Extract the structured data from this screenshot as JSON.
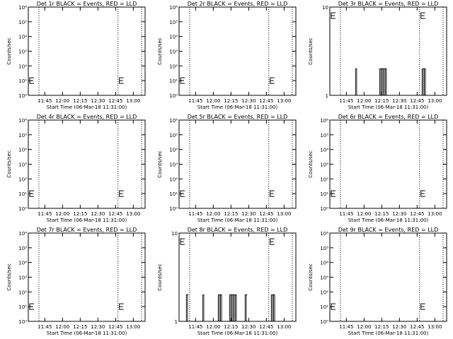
{
  "chart_data": [
    {
      "type": "line",
      "title": "Det 1r BLACK = Events, RED = LLD",
      "xlabel": "Start Time (06-Mar-18 11:31:00)",
      "ylabel": "Counts/sec",
      "yscale": "log",
      "ylim": [
        1,
        1000000
      ],
      "ytick_labels": [
        "10⁰",
        "10¹",
        "10²",
        "10³",
        "10⁴",
        "10⁵",
        "10⁶"
      ],
      "xtick_labels": [
        "11:45",
        "12:00",
        "12:15",
        "12:30",
        "12:45",
        "13:00"
      ],
      "xlim": [
        "11:31",
        "13:10"
      ],
      "vlines": [
        "11:40",
        "12:47",
        "13:07"
      ],
      "bursts": [],
      "series": [
        {
          "values": []
        }
      ]
    },
    {
      "type": "line",
      "title": "Det 2r BLACK = Events, RED = LLD",
      "xlabel": "Start Time (06-Mar-18 11:31:00)",
      "ylabel": "Counts/sec",
      "yscale": "log",
      "ylim": [
        1,
        1000000
      ],
      "ytick_labels": [
        "10⁰",
        "10¹",
        "10²",
        "10³",
        "10⁴",
        "10⁵",
        "10⁶"
      ],
      "xtick_labels": [
        "11:45",
        "12:00",
        "12:15",
        "12:30",
        "12:45",
        "13:00"
      ],
      "xlim": [
        "11:31",
        "13:10"
      ],
      "vlines": [
        "11:40",
        "12:47",
        "13:07"
      ],
      "bursts": [],
      "series": [
        {
          "values": []
        }
      ]
    },
    {
      "type": "line",
      "title": "Det 3r BLACK = Events, RED = LLD",
      "xlabel": "Start Time (06-Mar-18 11:31:00)",
      "ylabel": "Counts/sec",
      "yscale": "log",
      "ylim": [
        1,
        10
      ],
      "ytick_labels": [
        "1",
        "10"
      ],
      "xtick_labels": [
        "11:45",
        "12:00",
        "12:15",
        "12:30",
        "12:45",
        "13:00"
      ],
      "xlim": [
        "11:31",
        "13:10"
      ],
      "vlines": [
        "11:40",
        "12:47",
        "13:07"
      ],
      "bursts": [
        [
          11.88,
          11.9
        ],
        [
          12.22,
          12.32
        ],
        [
          12.82,
          12.87
        ]
      ],
      "series": [
        {
          "values": []
        }
      ]
    },
    {
      "type": "line",
      "title": "Det 4r BLACK = Events, RED = LLD",
      "xlabel": "Start Time (06-Mar-18 11:31:00)",
      "ylabel": "Counts/sec",
      "yscale": "log",
      "ylim": [
        1,
        1000000
      ],
      "ytick_labels": [
        "10⁰",
        "10¹",
        "10²",
        "10³",
        "10⁴",
        "10⁵",
        "10⁶"
      ],
      "xtick_labels": [
        "11:45",
        "12:00",
        "12:15",
        "12:30",
        "12:45",
        "13:00"
      ],
      "xlim": [
        "11:31",
        "13:10"
      ],
      "vlines": [
        "11:40",
        "12:47",
        "13:07"
      ],
      "bursts": [],
      "series": [
        {
          "values": []
        }
      ]
    },
    {
      "type": "line",
      "title": "Det 5r BLACK = Events, RED = LLD",
      "xlabel": "Start Time (06-Mar-18 11:31:00)",
      "ylabel": "Counts/sec",
      "yscale": "log",
      "ylim": [
        1,
        1000000
      ],
      "ytick_labels": [
        "10⁰",
        "10¹",
        "10²",
        "10³",
        "10⁴",
        "10⁵",
        "10⁶"
      ],
      "xtick_labels": [
        "11:45",
        "12:00",
        "12:15",
        "12:30",
        "12:45",
        "13:00"
      ],
      "xlim": [
        "11:31",
        "13:10"
      ],
      "vlines": [
        "11:40",
        "12:47",
        "13:07"
      ],
      "bursts": [],
      "series": [
        {
          "values": []
        }
      ]
    },
    {
      "type": "line",
      "title": "Det 6r BLACK = Events, RED = LLD",
      "xlabel": "Start Time (06-Mar-18 11:31:00)",
      "ylabel": "Counts/sec",
      "yscale": "log",
      "ylim": [
        1,
        1000000
      ],
      "ytick_labels": [
        "10⁰",
        "10¹",
        "10²",
        "10³",
        "10⁴",
        "10⁵",
        "10⁶"
      ],
      "xtick_labels": [
        "11:45",
        "12:00",
        "12:15",
        "12:30",
        "12:45",
        "13:00"
      ],
      "xlim": [
        "11:31",
        "13:10"
      ],
      "vlines": [
        "11:40",
        "12:47",
        "13:07"
      ],
      "bursts": [],
      "series": [
        {
          "values": []
        }
      ]
    },
    {
      "type": "line",
      "title": "Det 7r BLACK = Events, RED = LLD",
      "xlabel": "Start Time (06-Mar-18 11:31:00)",
      "ylabel": "Counts/sec",
      "yscale": "log",
      "ylim": [
        1,
        1000000
      ],
      "ytick_labels": [
        "10⁰",
        "10¹",
        "10²",
        "10³",
        "10⁴",
        "10⁵",
        "10⁶"
      ],
      "xtick_labels": [
        "11:45",
        "12:00",
        "12:15",
        "12:30",
        "12:45",
        "13:00"
      ],
      "xlim": [
        "11:31",
        "13:10"
      ],
      "vlines": [
        "11:40",
        "12:47",
        "13:07"
      ],
      "bursts": [],
      "series": [
        {
          "values": []
        }
      ]
    },
    {
      "type": "line",
      "title": "Det 8r BLACK = Events, RED = LLD",
      "xlabel": "Start Time (06-Mar-18 11:31:00)",
      "ylabel": "Counts/sec",
      "yscale": "log",
      "ylim": [
        1,
        10
      ],
      "ytick_labels": [
        "1",
        "10"
      ],
      "xtick_labels": [
        "11:45",
        "12:00",
        "12:15",
        "12:30",
        "12:45",
        "13:00"
      ],
      "xlim": [
        "11:31",
        "13:10"
      ],
      "vlines": [
        "11:40",
        "12:47",
        "13:07"
      ],
      "bursts": [
        [
          11.62,
          11.65
        ],
        [
          11.85,
          11.87
        ],
        [
          12.07,
          12.12
        ],
        [
          12.23,
          12.33
        ],
        [
          12.45,
          12.48
        ],
        [
          12.82,
          12.87
        ]
      ],
      "series": [
        {
          "values": []
        }
      ]
    },
    {
      "type": "line",
      "title": "Det 9r BLACK = Events, RED = LLD",
      "xlabel": "Start Time (06-Mar-18 11:31:00)",
      "ylabel": "Counts/sec",
      "yscale": "log",
      "ylim": [
        1,
        1000000
      ],
      "ytick_labels": [
        "10⁰",
        "10¹",
        "10²",
        "10³",
        "10⁴",
        "10⁵",
        "10⁶"
      ],
      "xtick_labels": [
        "11:45",
        "12:00",
        "12:15",
        "12:30",
        "12:45",
        "13:00"
      ],
      "xlim": [
        "11:31",
        "13:10"
      ],
      "vlines": [
        "11:40",
        "12:47",
        "13:07"
      ],
      "bursts": [],
      "series": [
        {
          "values": []
        }
      ]
    }
  ]
}
